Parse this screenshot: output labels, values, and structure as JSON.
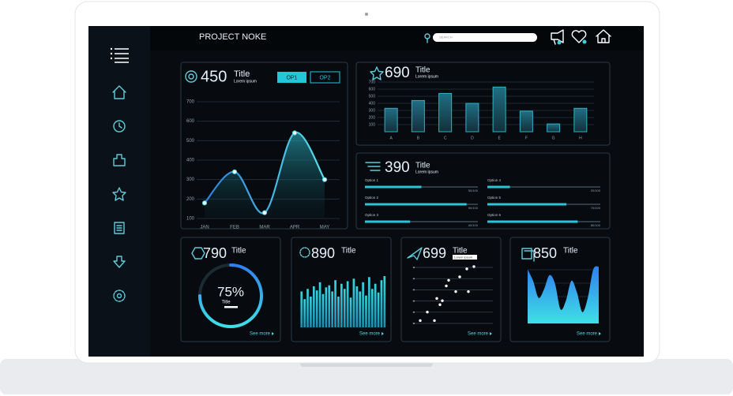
{
  "header": {
    "title": "PROJECT NOKE",
    "search_placeholder": "SEARCH"
  },
  "line_panel": {
    "value": 450,
    "title": "Title",
    "subtitle": "Lorem ipsum",
    "buttons": [
      "OP1",
      "OP2"
    ],
    "chart": {
      "type": "line",
      "categories": [
        "JAN",
        "FEB",
        "MAR",
        "APR",
        "MAY"
      ],
      "values": [
        180,
        340,
        130,
        540,
        300
      ],
      "color": "#4fd6e6",
      "ylim": [
        100,
        700
      ],
      "yticks": [
        100,
        200,
        300,
        400,
        500,
        600,
        700
      ],
      "grid": true
    }
  },
  "bar_panel": {
    "value": 690,
    "title": "Title",
    "subtitle": "Lorem ipsum",
    "chart": {
      "type": "bar",
      "categories": [
        "A",
        "B",
        "C",
        "D",
        "E",
        "F",
        "G",
        "H"
      ],
      "values": [
        330,
        440,
        540,
        400,
        630,
        290,
        110,
        330
      ],
      "color": "#2bb3c6",
      "ylim": [
        0,
        700
      ],
      "yticks": [
        100,
        200,
        300,
        400,
        500,
        600,
        700
      ],
      "grid": true
    }
  },
  "progress_panel": {
    "value": 390,
    "title": "Title",
    "subtitle": "Lorem ipsum",
    "labels": [
      "Option 1",
      "Option 2",
      "Option 3",
      "Option 4",
      "Option 5",
      "Option 6"
    ],
    "values": [
      50,
      90,
      40,
      20,
      70,
      80
    ],
    "value_labels": [
      "50/100",
      "90/100",
      "40/100",
      "20/100",
      "70/100",
      "80/100"
    ],
    "max": 100
  },
  "donut_panel": {
    "value": 790,
    "title": "Title",
    "chart": {
      "type": "donut",
      "value": 75,
      "value_label": "75%",
      "max": 100,
      "label": "Title"
    },
    "link": "See more"
  },
  "columns_panel": {
    "value": 890,
    "title": "Title",
    "link": "See more",
    "chart": {
      "type": "bar",
      "values": [
        70,
        55,
        75,
        60,
        80,
        72,
        88,
        65,
        78,
        82,
        70,
        92,
        60,
        85,
        75,
        90,
        58,
        95,
        80,
        70,
        88,
        62,
        98,
        75,
        85,
        68,
        92,
        100
      ],
      "ylim": [
        0,
        100
      ]
    }
  },
  "scatter_panel": {
    "value": 699,
    "title": "Title",
    "subtitle": "Lorem ipsum",
    "link": "See more",
    "chart": {
      "type": "scatter",
      "x": [
        10,
        19,
        28,
        31,
        35,
        38,
        43,
        46,
        55,
        60,
        69,
        71,
        78
      ],
      "values": [
        5,
        20,
        5,
        44,
        33,
        40,
        66,
        76,
        56,
        82,
        96,
        56,
        100
      ],
      "xlim": [
        0,
        100
      ],
      "ylim": [
        0,
        100
      ]
    }
  },
  "area_panel": {
    "value": 850,
    "title": "Title",
    "link": "See more",
    "chart": {
      "type": "area",
      "values": [
        95,
        75,
        45,
        60,
        85,
        70,
        25,
        40,
        75,
        55,
        20,
        45,
        95,
        100
      ],
      "ylim": [
        0,
        100
      ]
    }
  }
}
